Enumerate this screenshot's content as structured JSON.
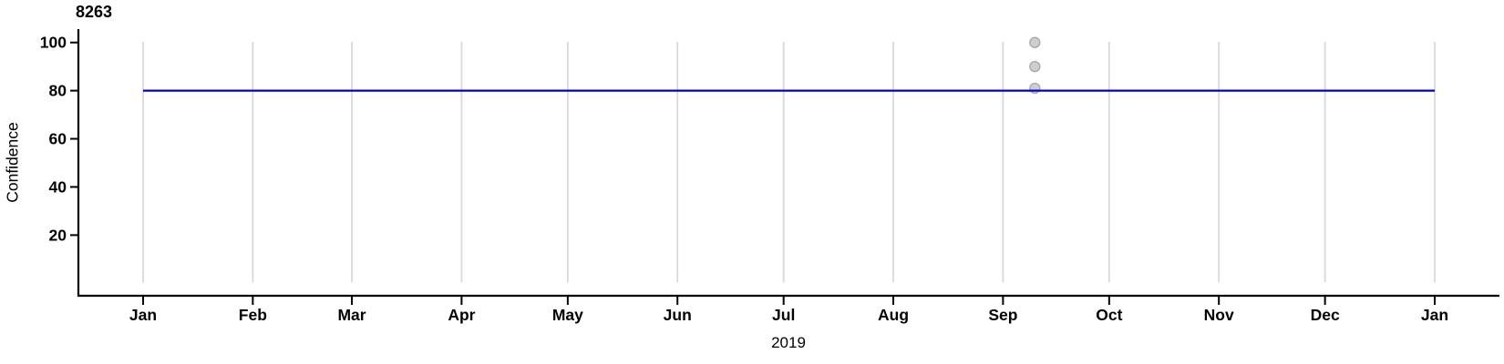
{
  "chart_data": {
    "type": "line",
    "title": "8263",
    "ylabel": "Confidence",
    "xlabel": "2019",
    "x_tick_labels": [
      "Jan",
      "Feb",
      "Mar",
      "Apr",
      "May",
      "Jun",
      "Jul",
      "Aug",
      "Sep",
      "Oct",
      "Nov",
      "Dec",
      "Jan"
    ],
    "y_tick_labels": [
      100,
      80,
      60,
      40,
      20
    ],
    "ylim": [
      0,
      100
    ],
    "x_range": "2019-01-01 to 2020-01-01",
    "grid": "vertical-monthly-gridlines",
    "legend": "none",
    "series": [
      {
        "name": "confidence-level-line",
        "type": "line",
        "color": "#0000CD",
        "y_value": 80,
        "x_start_day": 0,
        "x_end_day": 365
      }
    ],
    "points": {
      "name": "detection-observations",
      "type": "scatter",
      "fill": "#CBCBCB",
      "stroke": "#A6A6A6",
      "data": [
        {
          "date_approx": "2019-09-10",
          "day_of_year": 252,
          "value": 100
        },
        {
          "date_approx": "2019-09-10",
          "day_of_year": 252,
          "value": 90
        },
        {
          "date_approx": "2019-09-10",
          "day_of_year": 252,
          "value": 81
        }
      ]
    },
    "colors": {
      "axis": "#000000",
      "grid": "#D9D9D9",
      "accent_line": "#0000CD",
      "dot_fill": "#CBCBCB",
      "dot_stroke": "#A6A6A6"
    }
  }
}
